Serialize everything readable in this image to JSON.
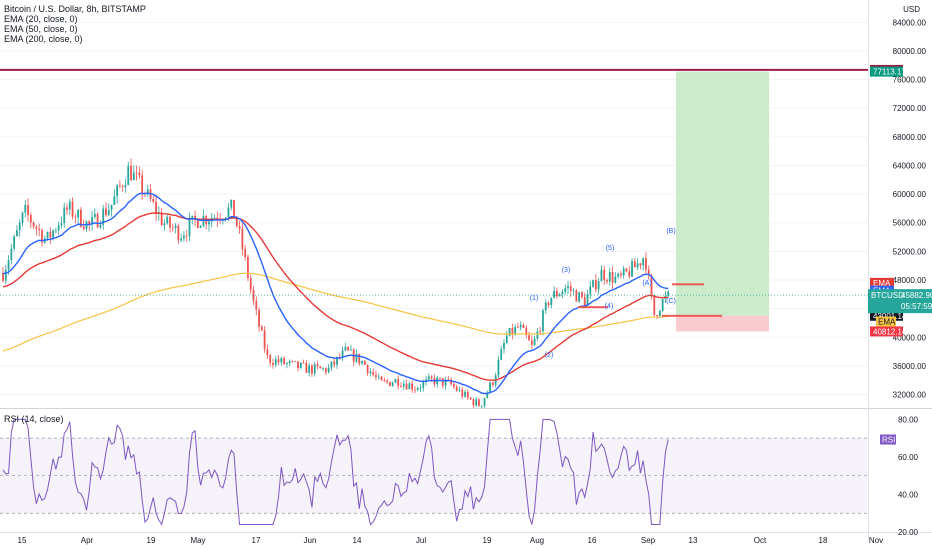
{
  "legend": {
    "title": "Bitcoin / U.S. Dollar, 8h, BITSTAMP",
    "ema20": "EMA (20, close, 0)",
    "ema50": "EMA (50, close, 0)",
    "ema200": "EMA (200, close, 0)"
  },
  "rsi_label": "RSI (14, close)",
  "currency": "USD",
  "colors": {
    "up": "#26a69a",
    "down": "#ef5350",
    "ema20": "#2962ff",
    "ema50": "#e53935",
    "ema200": "#f6c343",
    "rsi": "#7e57c2",
    "resistance": "#9c1c48",
    "target_zone": "#c8ebc8",
    "stop_zone": "#f8c9cc"
  },
  "price_tags": [
    {
      "value": 77348.74,
      "text": "77348.74",
      "color": "#9c1c48"
    },
    {
      "value": 77113.17,
      "text": "77113.17",
      "color": "#089981"
    },
    {
      "value": 47600,
      "text": "EMA",
      "color": "#e53935"
    },
    {
      "value": 46500,
      "text": "EMA",
      "color": "#2962ff"
    },
    {
      "value": 45882.9,
      "text": "45882.90",
      "color": "#26a69a"
    },
    {
      "value": 43001.14,
      "text": "43001.14",
      "color": "#131722"
    },
    {
      "value": 40812.14,
      "text": "40812.14",
      "color": "#f23645"
    }
  ],
  "btc_tag": {
    "label": "BTCUSD",
    "countdown": "05:57:59"
  },
  "ema200_tag": "EMA",
  "rsi_tag": "RSI",
  "wave_labels": [
    "(1)",
    "(2)",
    "(3)",
    "(4)",
    "(5)",
    "(B)",
    "(A)",
    "(C)"
  ],
  "chart_data": [
    {
      "type": "candlestick",
      "title": "Bitcoin / U.S. Dollar, 8h, BITSTAMP",
      "y_unit": "USD",
      "ylim": [
        29000,
        86000
      ],
      "y_ticks": [
        32000,
        36000,
        40000,
        44000,
        48000,
        52000,
        56000,
        60000,
        64000,
        68000,
        72000,
        76000,
        80000,
        84000
      ],
      "x_ticks": [
        "15",
        "Apr",
        "19",
        "May",
        "17",
        "Jun",
        "14",
        "Jul",
        "19",
        "Aug",
        "16",
        "Sep",
        "13",
        "Oct",
        "18",
        "Nov"
      ],
      "close_path": [
        {
          "t": 0,
          "v": 49000
        },
        {
          "t": 5,
          "v": 57500
        },
        {
          "t": 10,
          "v": 53500
        },
        {
          "t": 15,
          "v": 58000
        },
        {
          "t": 20,
          "v": 55500
        },
        {
          "t": 25,
          "v": 58500
        },
        {
          "t": 29,
          "v": 63500
        },
        {
          "t": 33,
          "v": 60000
        },
        {
          "t": 37,
          "v": 56000
        },
        {
          "t": 41,
          "v": 54500
        },
        {
          "t": 45,
          "v": 56500
        },
        {
          "t": 49,
          "v": 57000
        },
        {
          "t": 53,
          "v": 58000
        },
        {
          "t": 55,
          "v": 53000
        },
        {
          "t": 58,
          "v": 44000
        },
        {
          "t": 61,
          "v": 37000
        },
        {
          "t": 64,
          "v": 36500
        },
        {
          "t": 67,
          "v": 36000
        },
        {
          "t": 71,
          "v": 35500
        },
        {
          "t": 75,
          "v": 35500
        },
        {
          "t": 79,
          "v": 38000
        },
        {
          "t": 83,
          "v": 36500
        },
        {
          "t": 87,
          "v": 33500
        },
        {
          "t": 91,
          "v": 34000
        },
        {
          "t": 95,
          "v": 33000
        },
        {
          "t": 99,
          "v": 34000
        },
        {
          "t": 103,
          "v": 33500
        },
        {
          "t": 107,
          "v": 31500
        },
        {
          "t": 110,
          "v": 30500
        },
        {
          "t": 113,
          "v": 34000
        },
        {
          "t": 116,
          "v": 40000
        },
        {
          "t": 119,
          "v": 41500
        },
        {
          "t": 122,
          "v": 38500
        },
        {
          "t": 126,
          "v": 45500
        },
        {
          "t": 130,
          "v": 47000
        },
        {
          "t": 134,
          "v": 45000
        },
        {
          "t": 138,
          "v": 49000
        },
        {
          "t": 142,
          "v": 48000
        },
        {
          "t": 146,
          "v": 50000
        },
        {
          "t": 148,
          "v": 51500
        },
        {
          "t": 150,
          "v": 43000
        },
        {
          "t": 152,
          "v": 45000
        },
        {
          "t": 154,
          "v": 46000
        }
      ],
      "series": [
        {
          "name": "EMA (20, close, 0)",
          "color": "#2962ff"
        },
        {
          "name": "EMA (50, close, 0)",
          "color": "#e53935"
        },
        {
          "name": "EMA (200, close, 0)",
          "color": "#f6c343"
        }
      ],
      "last_price": 45882.9,
      "drawings": {
        "resistance_line": 77348.74,
        "target": 77113.17,
        "entry": 43001.14,
        "stop": 40812.14
      }
    },
    {
      "type": "line",
      "title": "RSI (14, close)",
      "ylim": [
        20,
        85
      ],
      "y_ticks": [
        20,
        40,
        60,
        80
      ],
      "bands": [
        30,
        50,
        70
      ],
      "series": [
        {
          "name": "RSI",
          "color": "#7e57c2"
        }
      ]
    }
  ]
}
